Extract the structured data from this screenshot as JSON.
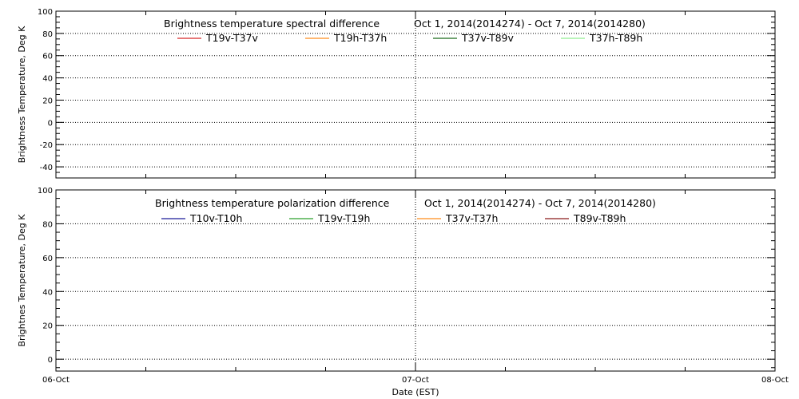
{
  "chart_data": [
    {
      "type": "line",
      "title": "Brightness temperature spectral difference",
      "date_range": "Oct  1, 2014(2014274) - Oct  7, 2014(2014280)",
      "ylabel": "Brightness Temperature, Deg K",
      "xlabel": "",
      "ylim": [
        -50,
        100
      ],
      "yticks": [
        -40,
        -20,
        0,
        20,
        40,
        60,
        80,
        100
      ],
      "x_range": [
        "06-Oct",
        "08-Oct"
      ],
      "x_reference_line": "07-Oct",
      "grid": true,
      "legend_position": "top-center",
      "series": [
        {
          "name": "T19v-T37v",
          "color": "#d62728",
          "values": []
        },
        {
          "name": "T19h-T37h",
          "color": "#ff8c1a",
          "values": []
        },
        {
          "name": "T37v-T89v",
          "color": "#1a6b1a",
          "values": []
        },
        {
          "name": "T37h-T89h",
          "color": "#90ee90",
          "values": []
        }
      ]
    },
    {
      "type": "line",
      "title": "Brightness temperature polarization difference",
      "date_range": "Oct  1, 2014(2014274) - Oct  7, 2014(2014280)",
      "ylabel": "Brightnes Temperature, Deg K",
      "xlabel": "Date (EST)",
      "ylim": [
        -7,
        100
      ],
      "yticks": [
        0,
        20,
        40,
        60,
        80,
        100
      ],
      "x_range": [
        "06-Oct",
        "08-Oct"
      ],
      "xticks": [
        "06-Oct",
        "07-Oct",
        "08-Oct"
      ],
      "x_reference_line": "07-Oct",
      "grid": true,
      "legend_position": "top-center",
      "series": [
        {
          "name": "T10v-T10h",
          "color": "#1a1a99",
          "values": []
        },
        {
          "name": "T19v-T19h",
          "color": "#2ca02c",
          "values": []
        },
        {
          "name": "T37v-T37h",
          "color": "#ff8c1a",
          "values": []
        },
        {
          "name": "T89v-T89h",
          "color": "#8b1a1a",
          "values": []
        }
      ]
    }
  ]
}
